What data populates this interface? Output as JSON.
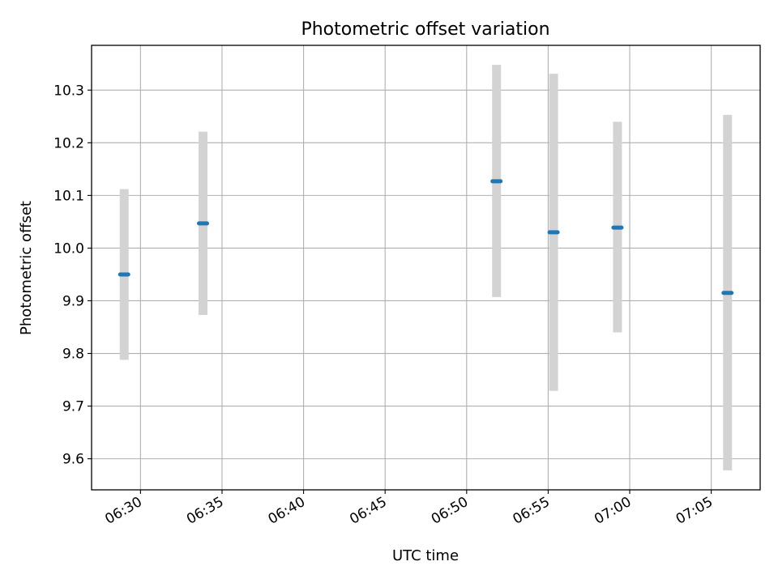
{
  "chart_data": {
    "type": "scatter",
    "title": "Photometric offset variation",
    "xlabel": "UTC time",
    "ylabel": "Photometric offset",
    "x_ticks": [
      "06:30",
      "06:35",
      "06:40",
      "06:45",
      "06:50",
      "06:55",
      "07:00",
      "07:05"
    ],
    "y_ticks": [
      "9.6",
      "9.7",
      "9.8",
      "9.9",
      "10.0",
      "10.1",
      "10.2",
      "10.3"
    ],
    "xlim": [
      "06:27:00",
      "07:08:00"
    ],
    "ylim": [
      9.541,
      10.385
    ],
    "grid": true,
    "error_bar_color": "#d3d3d3",
    "point_color": "#1f77b4",
    "points": [
      {
        "x": "06:29:00",
        "y": 9.95,
        "y_low": 9.788,
        "y_high": 10.112
      },
      {
        "x": "06:33:50",
        "y": 10.047,
        "y_low": 9.873,
        "y_high": 10.221
      },
      {
        "x": "06:51:50",
        "y": 10.127,
        "y_low": 9.907,
        "y_high": 10.348
      },
      {
        "x": "06:55:20",
        "y": 10.03,
        "y_low": 9.729,
        "y_high": 10.331
      },
      {
        "x": "06:59:15",
        "y": 10.039,
        "y_low": 9.84,
        "y_high": 10.24
      },
      {
        "x": "07:06:00",
        "y": 9.915,
        "y_low": 9.578,
        "y_high": 10.253
      }
    ]
  }
}
